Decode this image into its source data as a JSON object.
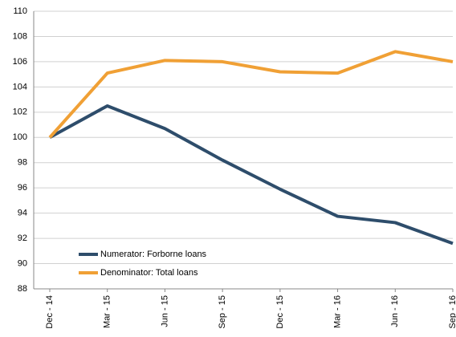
{
  "chart_data": {
    "type": "line",
    "categories": [
      "Dec - 14",
      "Mar - 15",
      "Jun - 15",
      "Sep - 15",
      "Dec - 15",
      "Mar - 16",
      "Jun - 16",
      "Sep - 16"
    ],
    "series": [
      {
        "name": "Numerator: Forborne loans",
        "color": "#2e4d6b",
        "values": [
          100,
          102.5,
          100.7,
          98.2,
          95.9,
          93.75,
          93.25,
          91.6
        ]
      },
      {
        "name": "Denominator: Total loans",
        "color": "#f0a035",
        "values": [
          100,
          105.1,
          106.1,
          106.0,
          105.2,
          105.1,
          106.8,
          106.0
        ]
      }
    ],
    "ylim": [
      88,
      110
    ],
    "yticks": [
      88,
      90,
      92,
      94,
      96,
      98,
      100,
      102,
      104,
      106,
      108,
      110
    ],
    "grid": true,
    "legend": "lower left"
  }
}
